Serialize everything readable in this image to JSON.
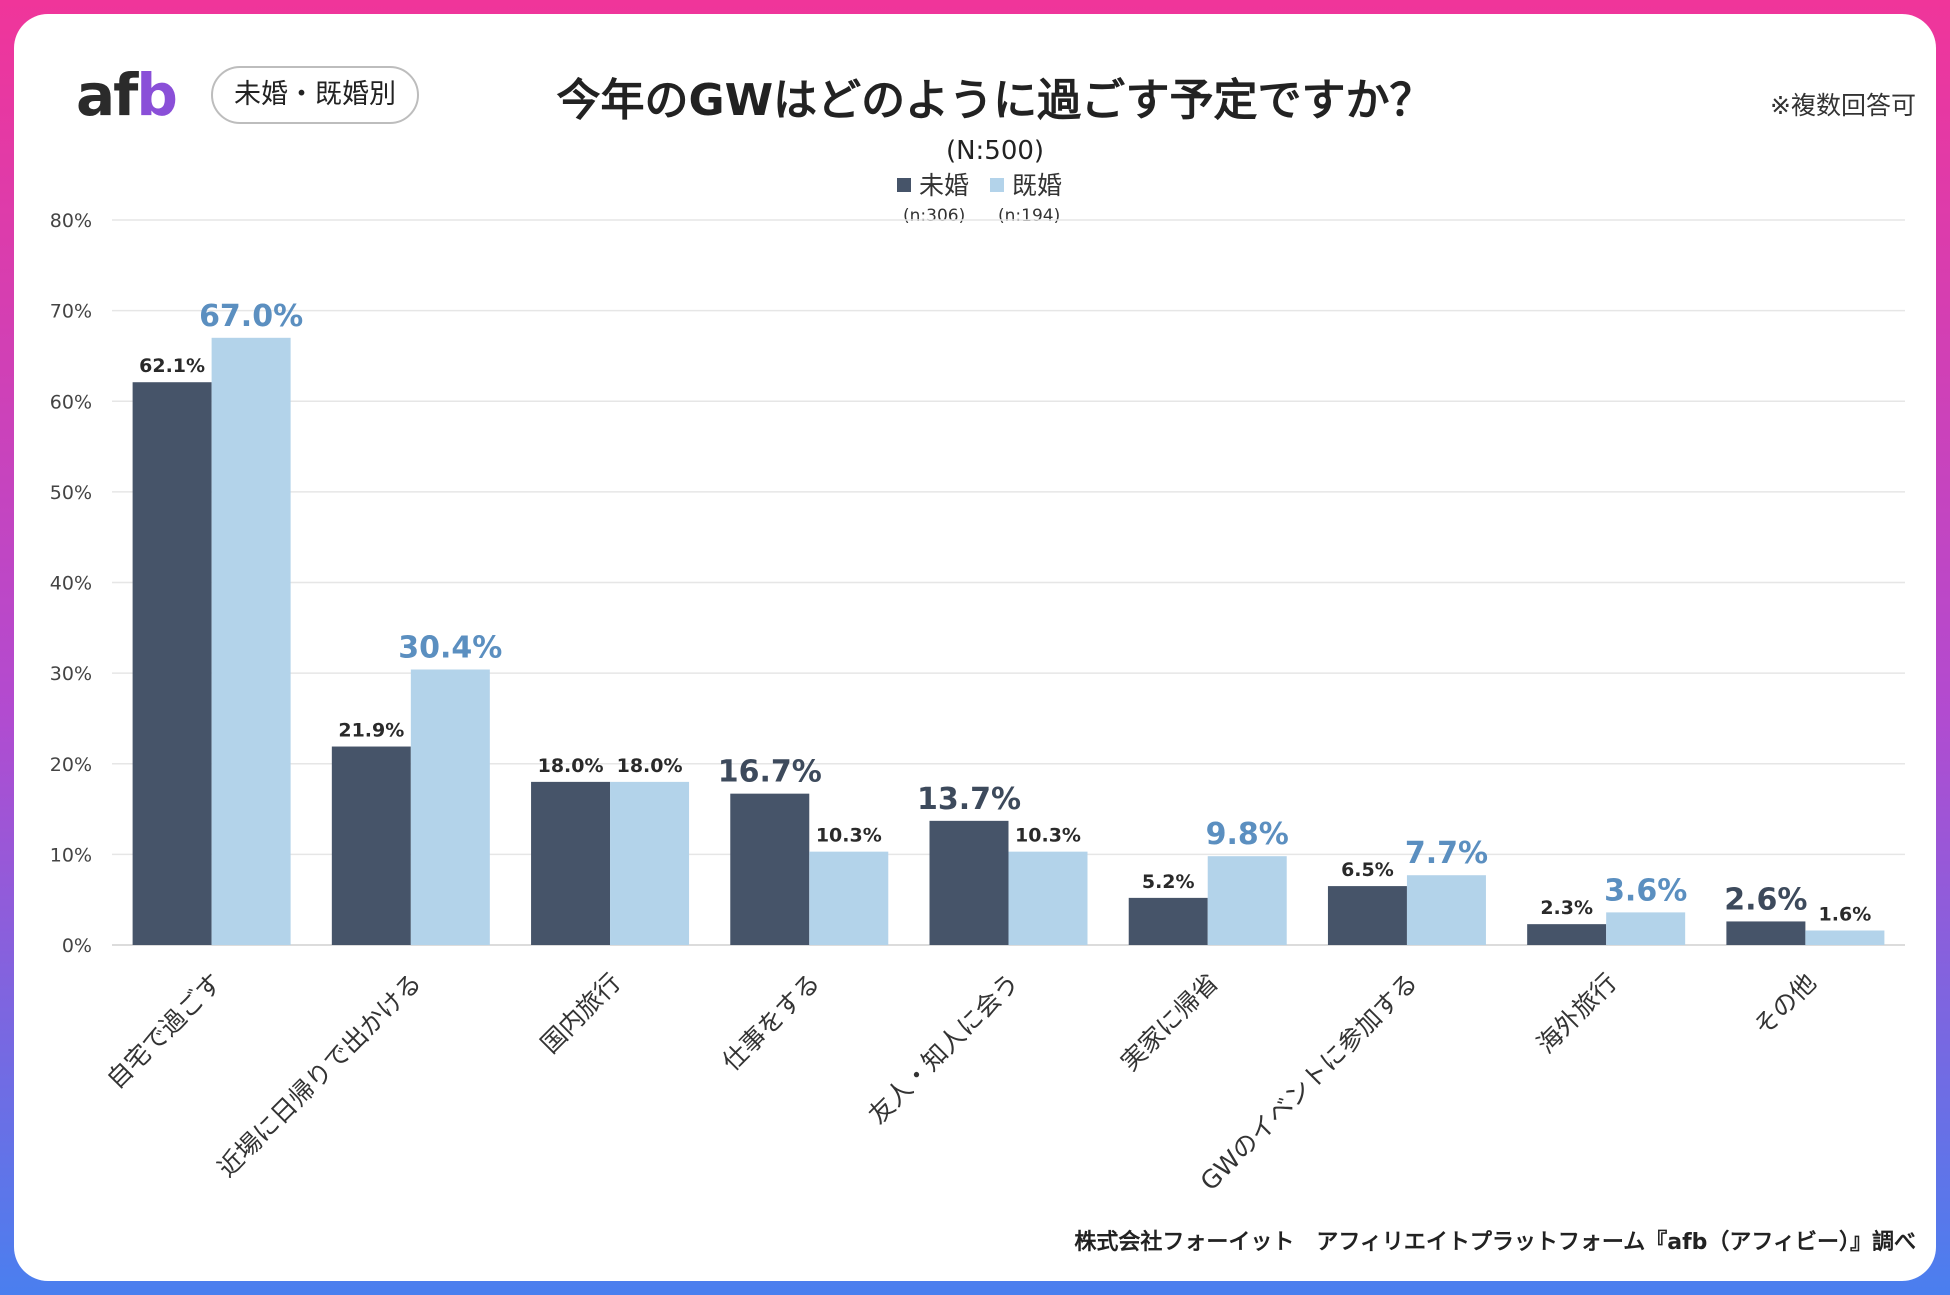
{
  "header": {
    "logo_text": "afb",
    "segment_pill": "未婚・既婚別",
    "title": "今年のGWはどのように過ごす予定ですか？",
    "note": "※複数回答可",
    "sample_size": "(N:500)"
  },
  "footer": {
    "source": "株式会社フォーイット　アフィリエイトプラットフォーム『afb（アフィビー）』調べ"
  },
  "colors": {
    "unmarried": "#465469",
    "married": "#b3d3ea",
    "highlight_married": "#5b8fc0",
    "highlight_unmarried": "#3d4a5c",
    "grid": "#e6e6e6"
  },
  "chart_data": {
    "type": "bar",
    "categories": [
      "自宅で過ごす",
      "近場に日帰りで出かける",
      "国内旅行",
      "仕事をする",
      "友人・知人に会う",
      "実家に帰省",
      "GWのイベントに参加する",
      "海外旅行",
      "その他"
    ],
    "series": [
      {
        "name": "未婚",
        "n_label": "(n:306)",
        "values": [
          62.1,
          21.9,
          18.0,
          16.7,
          13.7,
          5.2,
          6.5,
          2.3,
          2.6
        ],
        "highlight": [
          false,
          false,
          false,
          true,
          true,
          false,
          false,
          false,
          true
        ]
      },
      {
        "name": "既婚",
        "n_label": "(n:194)",
        "values": [
          67.0,
          30.4,
          18.0,
          10.3,
          10.3,
          9.8,
          7.7,
          3.6,
          1.6
        ],
        "highlight": [
          true,
          true,
          false,
          false,
          false,
          true,
          true,
          true,
          false
        ]
      }
    ],
    "value_labels": [
      [
        "62.1%",
        "21.9%",
        "18.0%",
        "16.7%",
        "13.7%",
        "5.2%",
        "6.5%",
        "2.3%",
        "2.6%"
      ],
      [
        "67.0%",
        "30.4%",
        "18.0%",
        "10.3%",
        "10.3%",
        "9.8%",
        "7.7%",
        "3.6%",
        "1.6%"
      ]
    ],
    "y_ticks": [
      "0%",
      "10%",
      "20%",
      "30%",
      "40%",
      "50%",
      "60%",
      "70%",
      "80%"
    ],
    "ylim": [
      0,
      80
    ],
    "grid": true,
    "legend": "top-center"
  }
}
